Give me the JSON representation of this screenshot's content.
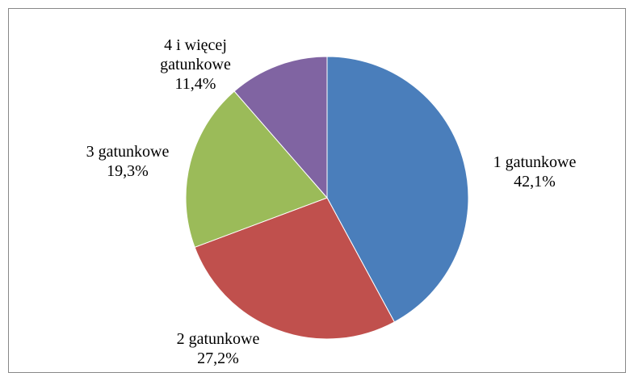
{
  "chart_data": {
    "type": "pie",
    "categories": [
      "1 gatunkowe",
      "2 gatunkowe",
      "3 gatunkowe",
      "4 i więcej gatunkowe"
    ],
    "values": [
      42.1,
      27.2,
      19.3,
      11.4
    ],
    "value_labels": [
      "42,1%",
      "27,2%",
      "19,3%",
      "11,4%"
    ],
    "colors": [
      "#4a7ebb",
      "#c0504d",
      "#9bbb59",
      "#8064a2"
    ]
  }
}
